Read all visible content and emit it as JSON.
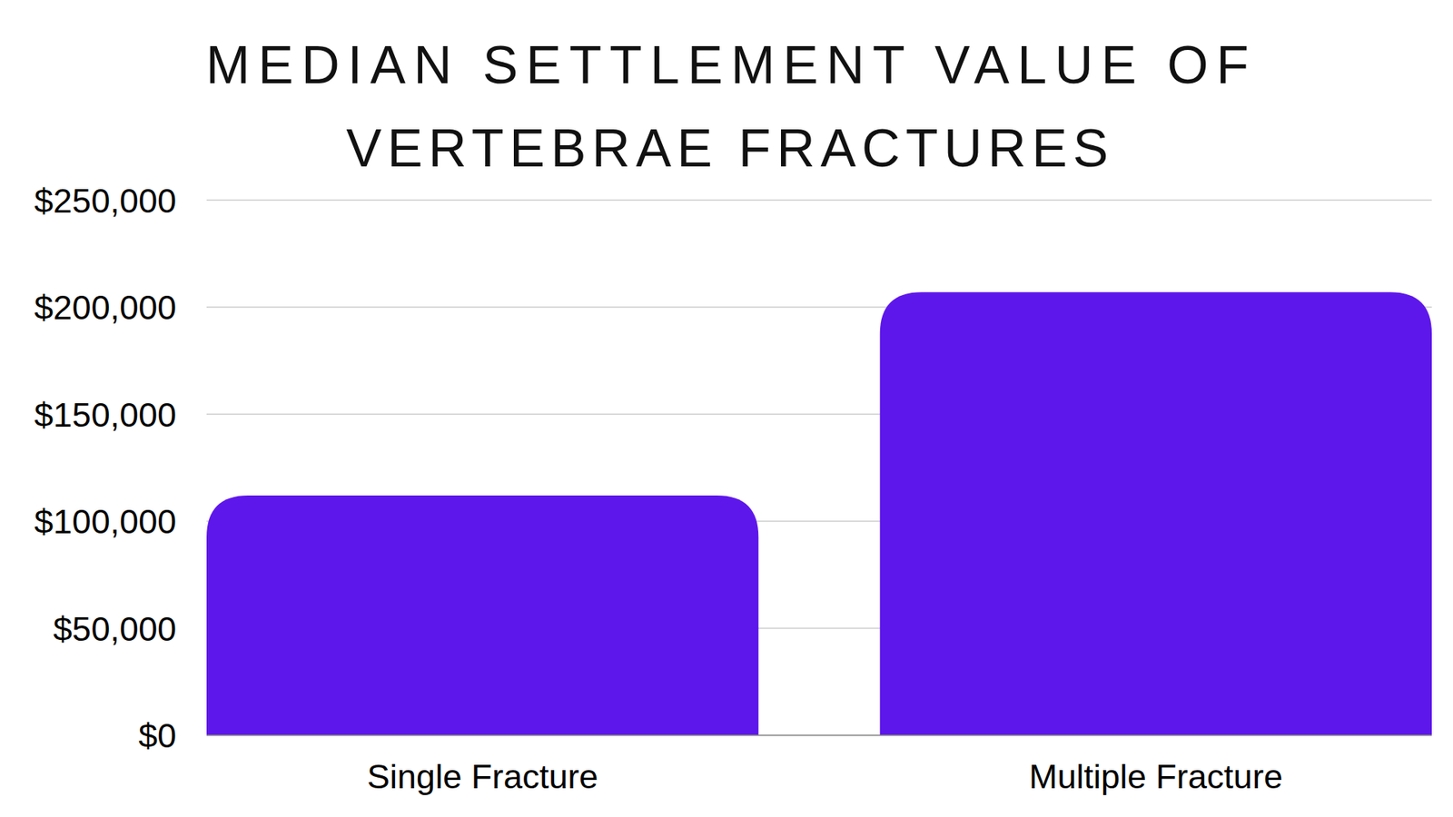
{
  "chart_data": {
    "type": "bar",
    "title": "MEDIAN SETTLEMENT VALUE OF VERTEBRAE FRACTURES",
    "categories": [
      "Single Fracture",
      "Multiple Fracture"
    ],
    "values": [
      112000,
      207000
    ],
    "color": "#5e17eb",
    "ylim": [
      0,
      250000
    ],
    "yticks": [
      {
        "value": 0,
        "label": "$0"
      },
      {
        "value": 50000,
        "label": "$50,000"
      },
      {
        "value": 100000,
        "label": "$100,000"
      },
      {
        "value": 150000,
        "label": "$150,000"
      },
      {
        "value": 200000,
        "label": "$200,000"
      },
      {
        "value": 250000,
        "label": "$250,000"
      }
    ],
    "grid": true
  }
}
